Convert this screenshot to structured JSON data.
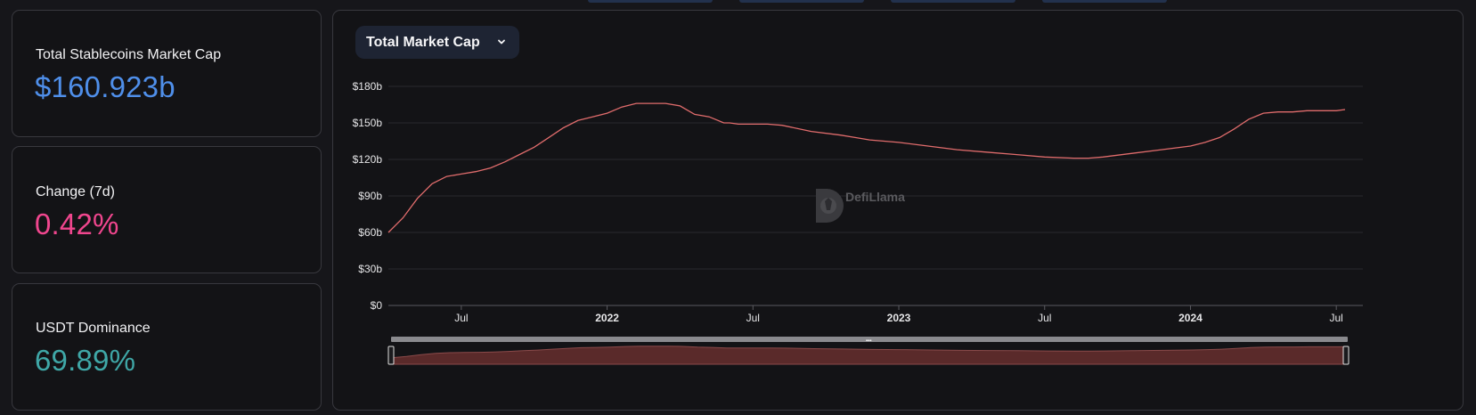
{
  "stats": [
    {
      "label": "Total Stablecoins Market Cap",
      "value": "$160.923b",
      "color": "#4f8fea"
    },
    {
      "label": "Change (7d)",
      "value": "0.42%",
      "color": "#f0468e"
    },
    {
      "label": "USDT Dominance",
      "value": "69.89%",
      "color": "#3fa7a7"
    }
  ],
  "chart": {
    "selector_label": "Total Market Cap",
    "watermark": "DefiLlama"
  },
  "colors": {
    "line": "#e06c6c",
    "area": "#5a2a2a"
  },
  "chart_data": {
    "type": "line",
    "title": "",
    "xlabel": "",
    "ylabel": "",
    "grid": true,
    "y_ticks": [
      "$0",
      "$30b",
      "$60b",
      "$90b",
      "$120b",
      "$150b",
      "$180b"
    ],
    "y_tick_values": [
      0,
      30,
      60,
      90,
      120,
      150,
      180
    ],
    "ylim": [
      0,
      180
    ],
    "x_ticks": [
      {
        "label": "Jul",
        "t": 2021.5,
        "bold": false
      },
      {
        "label": "2022",
        "t": 2022.0,
        "bold": true
      },
      {
        "label": "Jul",
        "t": 2022.5,
        "bold": false
      },
      {
        "label": "2023",
        "t": 2023.0,
        "bold": true
      },
      {
        "label": "Jul",
        "t": 2023.5,
        "bold": false
      },
      {
        "label": "2024",
        "t": 2024.0,
        "bold": true
      },
      {
        "label": "Jul",
        "t": 2024.5,
        "bold": false
      }
    ],
    "xlim": [
      2021.25,
      2024.53
    ],
    "series": [
      {
        "values_unit": "billions USD",
        "x": [
          2021.25,
          2021.3,
          2021.35,
          2021.4,
          2021.45,
          2021.5,
          2021.55,
          2021.6,
          2021.65,
          2021.7,
          2021.75,
          2021.8,
          2021.85,
          2021.9,
          2021.95,
          2022.0,
          2022.05,
          2022.1,
          2022.15,
          2022.2,
          2022.25,
          2022.3,
          2022.35,
          2022.4,
          2022.42,
          2022.45,
          2022.5,
          2022.55,
          2022.6,
          2022.7,
          2022.8,
          2022.85,
          2022.9,
          2023.0,
          2023.1,
          2023.2,
          2023.3,
          2023.4,
          2023.5,
          2023.6,
          2023.65,
          2023.7,
          2023.8,
          2023.9,
          2024.0,
          2024.05,
          2024.1,
          2024.15,
          2024.2,
          2024.25,
          2024.3,
          2024.35,
          2024.4,
          2024.45,
          2024.5,
          2024.53
        ],
        "values": [
          60,
          72,
          88,
          100,
          106,
          108,
          110,
          113,
          118,
          124,
          130,
          138,
          146,
          152,
          155,
          158,
          163,
          166,
          166,
          166,
          164,
          157,
          155,
          150,
          150,
          149,
          149,
          149,
          148,
          143,
          140,
          138,
          136,
          134,
          131,
          128,
          126,
          124,
          122,
          121,
          121,
          122,
          125,
          128,
          131,
          134,
          138,
          145,
          153,
          158,
          159,
          159,
          160,
          160,
          160,
          161
        ]
      }
    ]
  }
}
